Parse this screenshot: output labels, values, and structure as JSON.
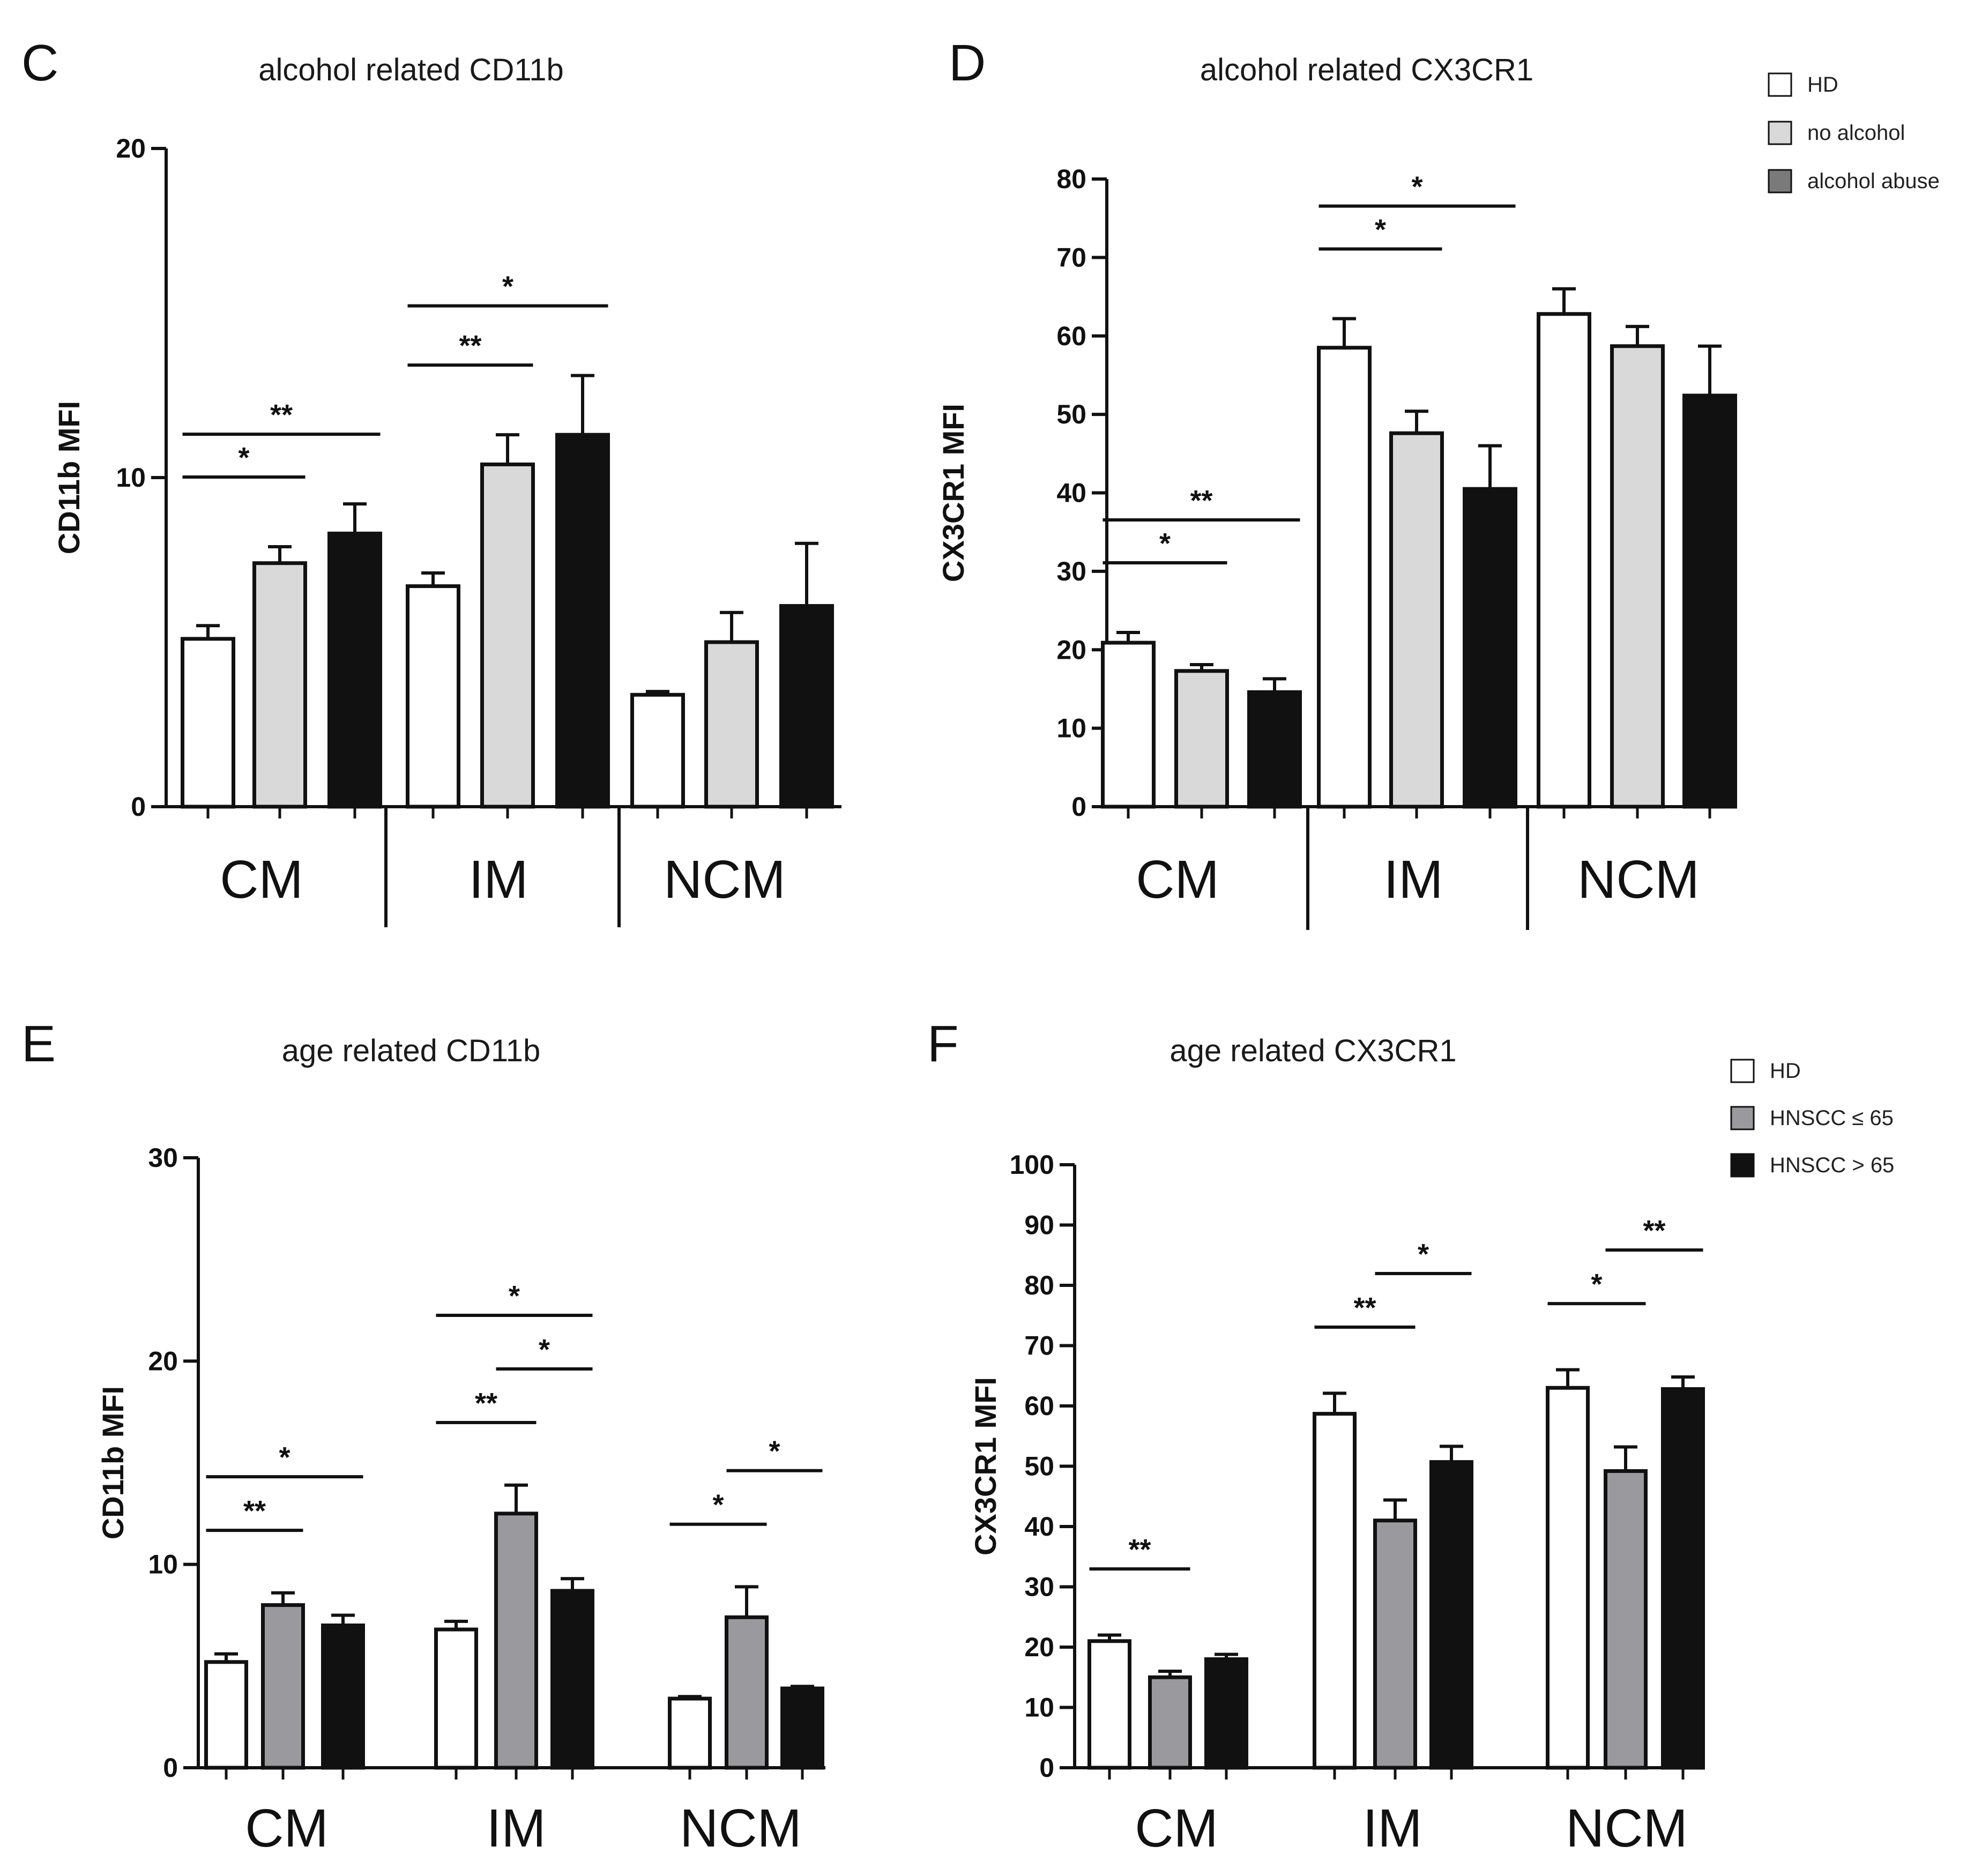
{
  "figure": {
    "colors": {
      "axis": "#111111",
      "white": "#ffffff",
      "light": "#d9d9d9",
      "dark": "#111111",
      "gray": "#9a9a9e"
    }
  },
  "chart_data": [
    {
      "panel": "C",
      "type": "bar",
      "title": "alcohol related CD11b",
      "ylabel": "CD11b MFI",
      "ylim": [
        0,
        20
      ],
      "yticks": [
        "0",
        "10",
        "20"
      ],
      "categories": [
        "CM",
        "IM",
        "NCM"
      ],
      "series": [
        {
          "name": "HD",
          "values": [
            5.1,
            6.7,
            3.4
          ],
          "errors": [
            0.4,
            0.4,
            0.1
          ]
        },
        {
          "name": "no alcohol",
          "values": [
            7.4,
            10.4,
            5.0
          ],
          "errors": [
            0.5,
            0.9,
            0.9
          ]
        },
        {
          "name": "alcohol abuse",
          "values": [
            8.3,
            11.3,
            6.1
          ],
          "errors": [
            0.9,
            1.8,
            1.9
          ]
        }
      ],
      "significance": [
        {
          "from": [
            0,
            0
          ],
          "to": [
            0,
            1
          ],
          "label": "*"
        },
        {
          "from": [
            0,
            0
          ],
          "to": [
            0,
            2
          ],
          "label": "**"
        },
        {
          "from": [
            1,
            0
          ],
          "to": [
            1,
            1
          ],
          "label": "**"
        },
        {
          "from": [
            1,
            0
          ],
          "to": [
            1,
            2
          ],
          "label": "*"
        }
      ]
    },
    {
      "panel": "D",
      "type": "bar",
      "title": "alcohol related CX3CR1",
      "ylabel": "CX3CR1 MFI",
      "ylim": [
        0,
        80
      ],
      "yticks": [
        "0",
        "10",
        "20",
        "30",
        "40",
        "50",
        "60",
        "70",
        "80"
      ],
      "categories": [
        "CM",
        "IM",
        "NCM"
      ],
      "series": [
        {
          "name": "HD",
          "values": [
            20.9,
            58.5,
            62.8
          ],
          "errors": [
            1.3,
            3.7,
            3.2
          ]
        },
        {
          "name": "no alcohol",
          "values": [
            17.3,
            47.6,
            58.7
          ],
          "errors": [
            0.8,
            2.8,
            2.5
          ]
        },
        {
          "name": "alcohol abuse",
          "values": [
            14.6,
            40.5,
            52.4
          ],
          "errors": [
            1.7,
            5.5,
            6.3
          ]
        }
      ],
      "significance": [
        {
          "from": [
            0,
            0
          ],
          "to": [
            0,
            1
          ],
          "label": "*"
        },
        {
          "from": [
            0,
            0
          ],
          "to": [
            0,
            2
          ],
          "label": "**"
        },
        {
          "from": [
            1,
            0
          ],
          "to": [
            1,
            1
          ],
          "label": "*"
        },
        {
          "from": [
            1,
            0
          ],
          "to": [
            1,
            2
          ],
          "label": "*"
        }
      ],
      "legend": {
        "position": "top-right",
        "entries": [
          "HD",
          "no alcohol",
          "alcohol abuse"
        ]
      }
    },
    {
      "panel": "E",
      "type": "bar",
      "title": "age related CD11b",
      "ylabel": "CD11b MFI",
      "ylim": [
        0,
        30
      ],
      "yticks": [
        "0",
        "10",
        "20",
        "30"
      ],
      "categories": [
        "CM",
        "IM",
        "NCM"
      ],
      "series": [
        {
          "name": "HD",
          "values": [
            5.2,
            6.8,
            3.4
          ],
          "errors": [
            0.4,
            0.4,
            0.1
          ]
        },
        {
          "name": "HNSCC ≤ 65",
          "values": [
            8.0,
            12.5,
            7.4
          ],
          "errors": [
            0.6,
            1.4,
            1.5
          ]
        },
        {
          "name": "HNSCC > 65",
          "values": [
            7.0,
            8.7,
            3.9
          ],
          "errors": [
            0.5,
            0.6,
            0.1
          ]
        }
      ],
      "significance": [
        {
          "from": [
            0,
            0
          ],
          "to": [
            0,
            1
          ],
          "label": "**"
        },
        {
          "from": [
            0,
            0
          ],
          "to": [
            0,
            2
          ],
          "label": "*"
        },
        {
          "from": [
            1,
            0
          ],
          "to": [
            1,
            1
          ],
          "label": "**"
        },
        {
          "from": [
            1,
            1
          ],
          "to": [
            1,
            2
          ],
          "label": "*"
        },
        {
          "from": [
            1,
            0
          ],
          "to": [
            1,
            2
          ],
          "label": "*"
        },
        {
          "from": [
            2,
            0
          ],
          "to": [
            2,
            1
          ],
          "label": "*"
        },
        {
          "from": [
            2,
            1
          ],
          "to": [
            2,
            2
          ],
          "label": "*"
        }
      ]
    },
    {
      "panel": "F",
      "type": "bar",
      "title": "age related CX3CR1",
      "ylabel": "CX3CR1 MFI",
      "ylim": [
        0,
        100
      ],
      "yticks": [
        "0",
        "10",
        "20",
        "30",
        "40",
        "50",
        "60",
        "70",
        "80",
        "90",
        "100"
      ],
      "categories": [
        "CM",
        "IM",
        "NCM"
      ],
      "series": [
        {
          "name": "HD",
          "values": [
            21.0,
            58.7,
            63.0
          ],
          "errors": [
            1.0,
            3.4,
            3.0
          ]
        },
        {
          "name": "HNSCC ≤ 65",
          "values": [
            15.0,
            41.0,
            49.2
          ],
          "errors": [
            1.0,
            3.4,
            4.0
          ]
        },
        {
          "name": "HNSCC > 65",
          "values": [
            18.0,
            50.7,
            62.8
          ],
          "errors": [
            0.8,
            2.6,
            2.0
          ]
        }
      ],
      "significance": [
        {
          "from": [
            0,
            0
          ],
          "to": [
            0,
            1
          ],
          "label": "**"
        },
        {
          "from": [
            1,
            0
          ],
          "to": [
            1,
            1
          ],
          "label": "**"
        },
        {
          "from": [
            1,
            1
          ],
          "to": [
            1,
            2
          ],
          "label": "*"
        },
        {
          "from": [
            2,
            0
          ],
          "to": [
            2,
            1
          ],
          "label": "*"
        },
        {
          "from": [
            2,
            1
          ],
          "to": [
            2,
            2
          ],
          "label": "**"
        }
      ],
      "legend": {
        "position": "top-right",
        "entries": [
          "HD",
          "HNSCC ≤ 65",
          "HNSCC > 65"
        ]
      }
    }
  ]
}
